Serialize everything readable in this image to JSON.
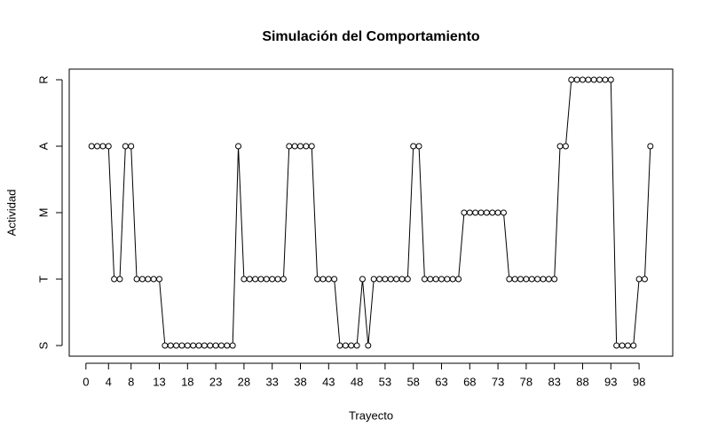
{
  "chart_data": {
    "type": "line",
    "title": "Simulación del Comportamiento",
    "x_label": "Trayecto",
    "y_label": "Actividad",
    "x": [
      1,
      2,
      3,
      4,
      5,
      6,
      7,
      8,
      9,
      10,
      11,
      12,
      13,
      14,
      15,
      16,
      17,
      18,
      19,
      20,
      21,
      22,
      23,
      24,
      25,
      26,
      27,
      28,
      29,
      30,
      31,
      32,
      33,
      34,
      35,
      36,
      37,
      38,
      39,
      40,
      41,
      42,
      43,
      44,
      45,
      46,
      47,
      48,
      49,
      50,
      51,
      52,
      53,
      54,
      55,
      56,
      57,
      58,
      59,
      60,
      61,
      62,
      63,
      64,
      65,
      66,
      67,
      68,
      69,
      70,
      71,
      72,
      73,
      74,
      75,
      76,
      77,
      78,
      79,
      80,
      81,
      82,
      83,
      84,
      85,
      86,
      87,
      88,
      89,
      90,
      91,
      92,
      93,
      94,
      95,
      96,
      97,
      98,
      99,
      100
    ],
    "series": [
      {
        "name": "Actividad",
        "color": "#000000",
        "values": [
          4,
          4,
          4,
          4,
          2,
          2,
          4,
          4,
          2,
          2,
          2,
          2,
          2,
          1,
          1,
          1,
          1,
          1,
          1,
          1,
          1,
          1,
          1,
          1,
          1,
          1,
          4,
          2,
          2,
          2,
          2,
          2,
          2,
          2,
          2,
          4,
          4,
          4,
          4,
          4,
          2,
          2,
          2,
          2,
          1,
          1,
          1,
          1,
          2,
          1,
          2,
          2,
          2,
          2,
          2,
          2,
          2,
          4,
          4,
          2,
          2,
          2,
          2,
          2,
          2,
          2,
          3,
          3,
          3,
          3,
          3,
          3,
          3,
          3,
          2,
          2,
          2,
          2,
          2,
          2,
          2,
          2,
          2,
          4,
          4,
          5,
          5,
          5,
          5,
          5,
          5,
          5,
          5,
          1,
          1,
          1,
          1,
          2,
          2,
          4
        ]
      }
    ],
    "xlim": [
      -2.96,
      103.96
    ],
    "ylim": [
      0.84,
      5.16
    ],
    "xticks": [
      0,
      4,
      8,
      13,
      18,
      23,
      28,
      33,
      38,
      43,
      48,
      53,
      58,
      63,
      68,
      73,
      78,
      83,
      88,
      93,
      98
    ],
    "yticks": [
      {
        "value": 1,
        "label": "S"
      },
      {
        "value": 2,
        "label": "T"
      },
      {
        "value": 3,
        "label": "M"
      },
      {
        "value": 4,
        "label": "A"
      },
      {
        "value": 5,
        "label": "R"
      }
    ]
  }
}
